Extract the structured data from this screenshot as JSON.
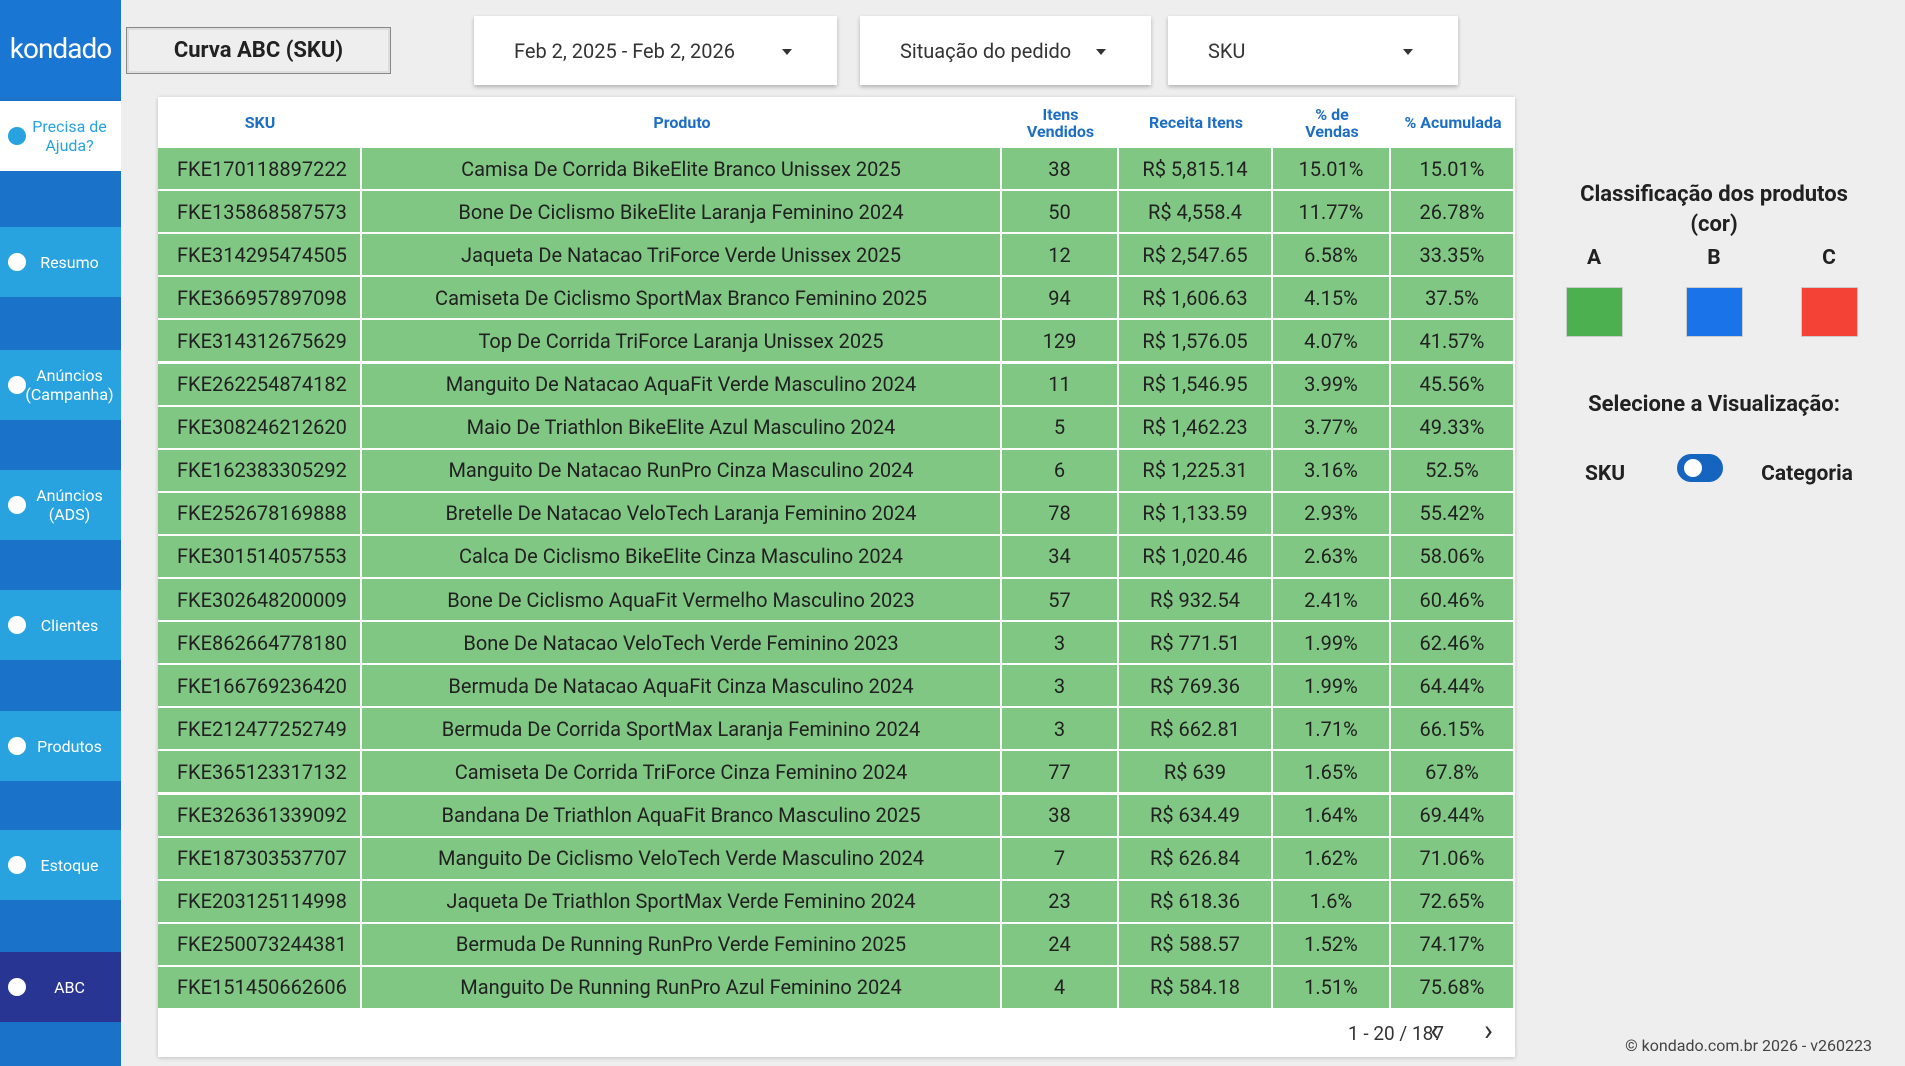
{
  "logo": "kondado",
  "sidebar": {
    "help": "Precisa de Ajuda?",
    "items": [
      "Resumo",
      "Anúncios (Campanha)",
      "Anúncios (ADS)",
      "Clientes",
      "Produtos",
      "Estoque",
      "ABC"
    ]
  },
  "header": {
    "title": "Curva ABC (SKU)"
  },
  "filters": [
    "Feb 2, 2025 - Feb 2, 2026",
    "Situação do pedido",
    "SKU"
  ],
  "table": {
    "columns": [
      "SKU",
      "Produto",
      "Itens Vendidos",
      "Receita Itens",
      "% de Vendas",
      "% Acumulada"
    ],
    "rows": [
      [
        "FKE170118897222",
        "Camisa De Corrida BikeElite Branco Unissex 2025",
        "38",
        "R$ 5,815.14",
        "15.01%",
        "15.01%"
      ],
      [
        "FKE135868587573",
        "Bone De Ciclismo BikeElite Laranja Feminino 2024",
        "50",
        "R$ 4,558.4",
        "11.77%",
        "26.78%"
      ],
      [
        "FKE314295474505",
        "Jaqueta De Natacao TriForce Verde Unissex 2025",
        "12",
        "R$ 2,547.65",
        "6.58%",
        "33.35%"
      ],
      [
        "FKE366957897098",
        "Camiseta De Ciclismo SportMax Branco Feminino 2025",
        "94",
        "R$ 1,606.63",
        "4.15%",
        "37.5%"
      ],
      [
        "FKE314312675629",
        "Top De Corrida TriForce Laranja Unissex 2025",
        "129",
        "R$ 1,576.05",
        "4.07%",
        "41.57%"
      ],
      [
        "FKE262254874182",
        "Manguito De Natacao AquaFit Verde Masculino 2024",
        "11",
        "R$ 1,546.95",
        "3.99%",
        "45.56%"
      ],
      [
        "FKE308246212620",
        "Maio De Triathlon BikeElite Azul Masculino 2024",
        "5",
        "R$ 1,462.23",
        "3.77%",
        "49.33%"
      ],
      [
        "FKE162383305292",
        "Manguito De Natacao RunPro Cinza Masculino 2024",
        "6",
        "R$ 1,225.31",
        "3.16%",
        "52.5%"
      ],
      [
        "FKE252678169888",
        "Bretelle De Natacao VeloTech Laranja Feminino 2024",
        "78",
        "R$ 1,133.59",
        "2.93%",
        "55.42%"
      ],
      [
        "FKE301514057553",
        "Calca De Ciclismo BikeElite Cinza Masculino 2024",
        "34",
        "R$ 1,020.46",
        "2.63%",
        "58.06%"
      ],
      [
        "FKE302648200009",
        "Bone De Ciclismo AquaFit Vermelho Masculino 2023",
        "57",
        "R$ 932.54",
        "2.41%",
        "60.46%"
      ],
      [
        "FKE862664778180",
        "Bone De Natacao VeloTech Verde Feminino 2023",
        "3",
        "R$ 771.51",
        "1.99%",
        "62.46%"
      ],
      [
        "FKE166769236420",
        "Bermuda De Natacao AquaFit Cinza Masculino 2024",
        "3",
        "R$ 769.36",
        "1.99%",
        "64.44%"
      ],
      [
        "FKE212477252749",
        "Bermuda De Corrida SportMax Laranja Feminino 2024",
        "3",
        "R$ 662.81",
        "1.71%",
        "66.15%"
      ],
      [
        "FKE365123317132",
        "Camiseta De Corrida TriForce Cinza Feminino 2024",
        "77",
        "R$ 639",
        "1.65%",
        "67.8%"
      ],
      [
        "FKE326361339092",
        "Bandana De Triathlon AquaFit Branco Masculino 2025",
        "38",
        "R$ 634.49",
        "1.64%",
        "69.44%"
      ],
      [
        "FKE187303537707",
        "Manguito De Ciclismo VeloTech Verde Masculino 2024",
        "7",
        "R$ 626.84",
        "1.62%",
        "71.06%"
      ],
      [
        "FKE203125114998",
        "Jaqueta De Triathlon SportMax Verde Feminino 2024",
        "23",
        "R$ 618.36",
        "1.6%",
        "72.65%"
      ],
      [
        "FKE250073244381",
        "Bermuda De Running RunPro Verde Feminino 2025",
        "24",
        "R$ 588.57",
        "1.52%",
        "74.17%"
      ],
      [
        "FKE151450662606",
        "Manguito De Running RunPro Azul Feminino 2024",
        "4",
        "R$ 584.18",
        "1.51%",
        "75.68%"
      ]
    ],
    "pagination": "1 - 20 / 187"
  },
  "legend": {
    "title": "Classificação dos produtos (cor)",
    "classes": [
      {
        "label": "A",
        "color": "#4caf50"
      },
      {
        "label": "B",
        "color": "#1a73e8"
      },
      {
        "label": "C",
        "color": "#f44336"
      }
    ]
  },
  "view": {
    "title": "Selecione a Visualização:",
    "left": "SKU",
    "right": "Categoria"
  },
  "footer": "© kondado.com.br 2026 - v260223"
}
